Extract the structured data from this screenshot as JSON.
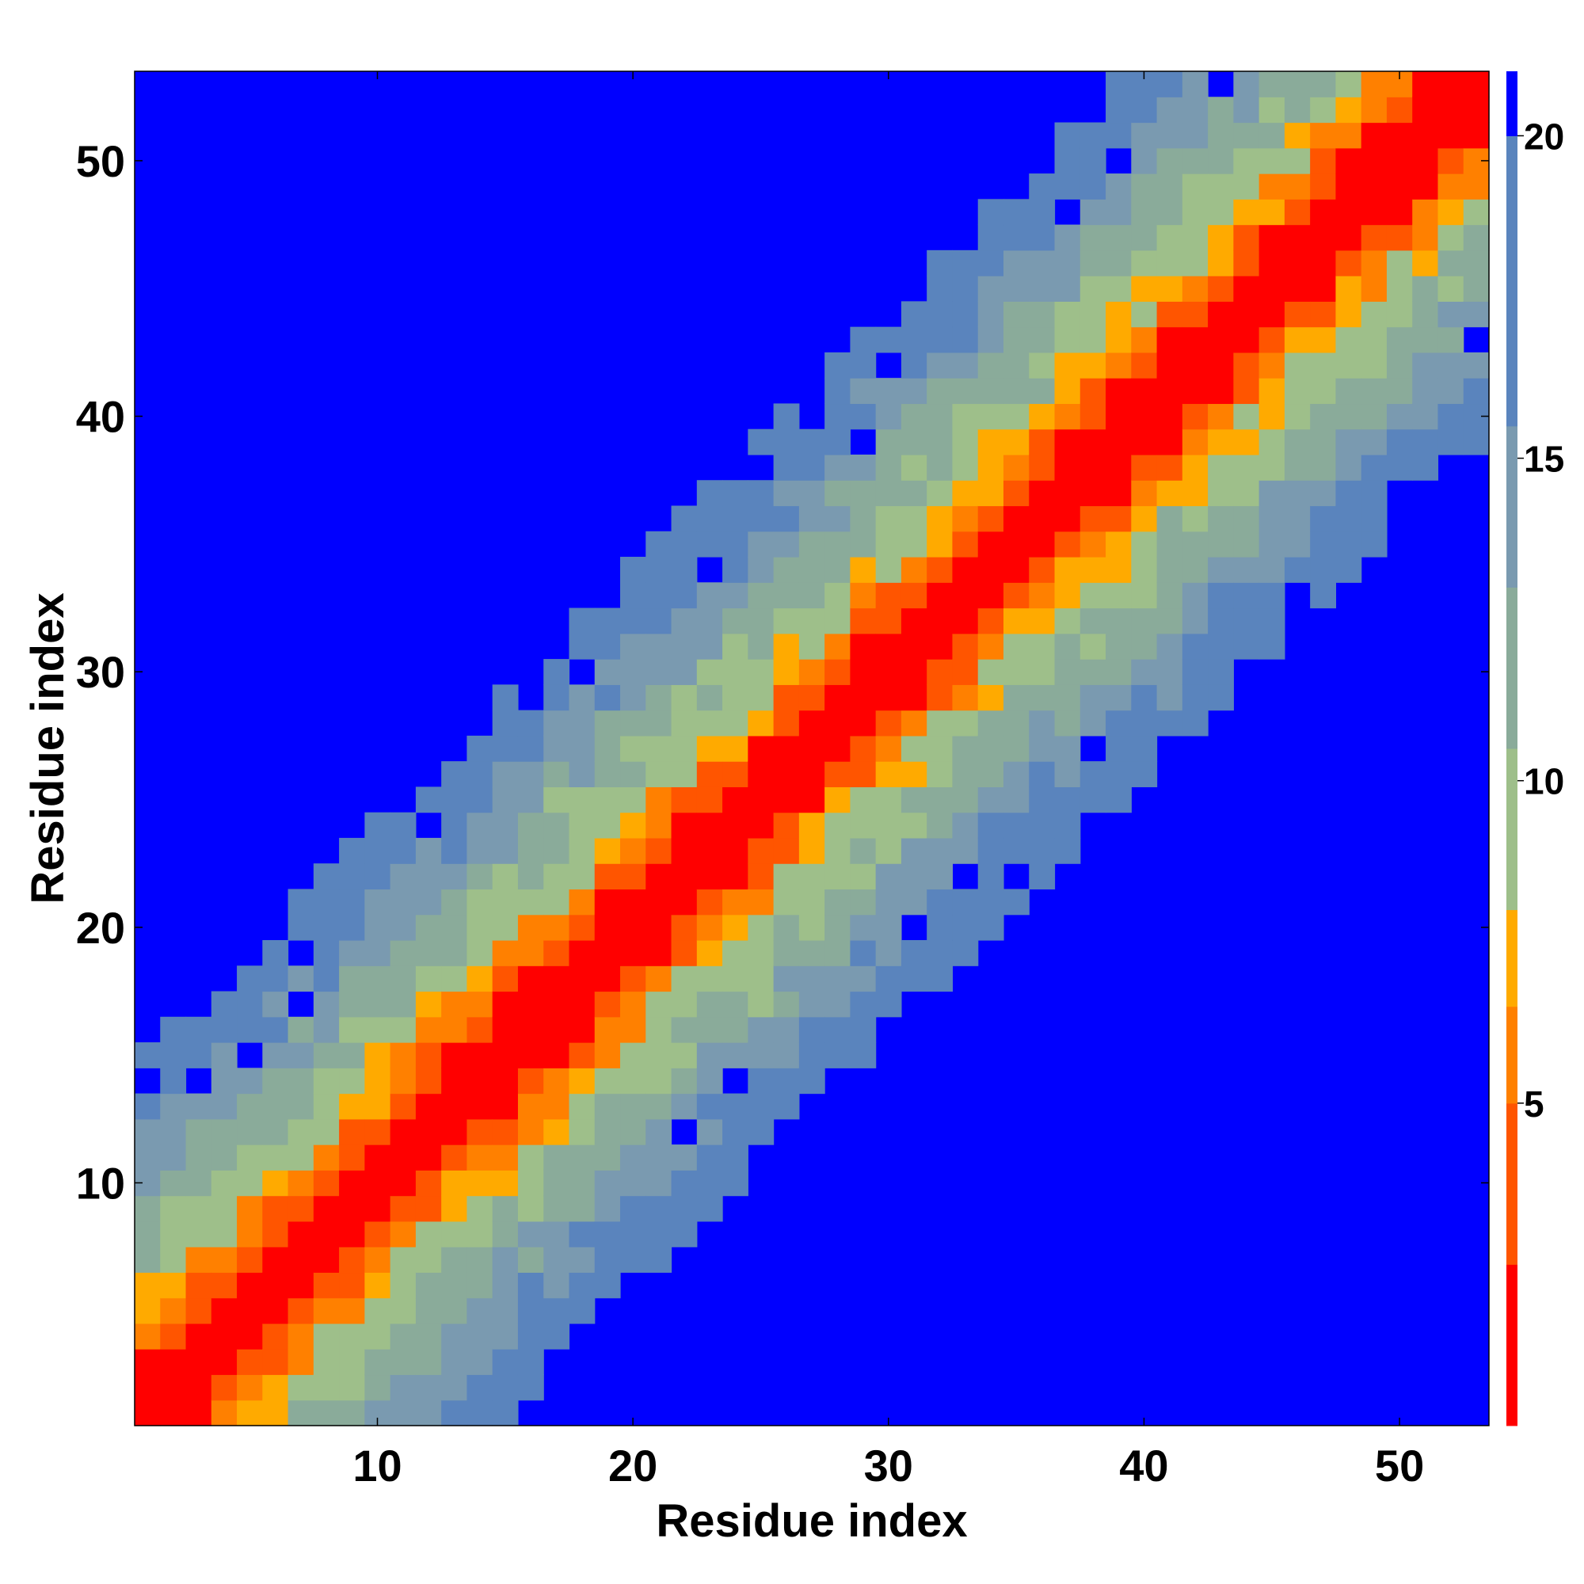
{
  "chart_data": {
    "type": "heatmap",
    "title": "",
    "xlabel": "Residue index",
    "ylabel": "Residue index",
    "x_range": [
      0.5,
      53.5
    ],
    "y_range": [
      0.5,
      53.5
    ],
    "n_residues": 53,
    "x_ticks": [
      10,
      20,
      30,
      40,
      50
    ],
    "y_ticks": [
      10,
      20,
      30,
      40,
      50
    ],
    "x_tick_labels": [
      "10",
      "20",
      "30",
      "40",
      "50"
    ],
    "y_tick_labels": [
      "10",
      "20",
      "30",
      "40",
      "50"
    ],
    "colorbar": {
      "range": [
        0,
        21
      ],
      "ticks": [
        5,
        10,
        15,
        20
      ],
      "tick_labels": [
        "5",
        "10",
        "15",
        "20"
      ],
      "levels": [
        {
          "max": 2.5,
          "color": "#ff0000"
        },
        {
          "max": 5.0,
          "color": "#ff5500"
        },
        {
          "max": 6.5,
          "color": "#ff8000"
        },
        {
          "max": 8.0,
          "color": "#ffaa00"
        },
        {
          "max": 10.5,
          "color": "#9ebf8a"
        },
        {
          "max": 13.0,
          "color": "#8aab9a"
        },
        {
          "max": 15.5,
          "color": "#7a9ab0"
        },
        {
          "max": 20.0,
          "color": "#5a84bd"
        },
        {
          "max": 21.0,
          "color": "#0000ff"
        }
      ]
    },
    "distance_model": {
      "description_values": "approximate distance value per |i-j| band",
      "band_values": [
        0,
        1.5,
        3,
        5.5,
        7,
        9,
        10,
        11,
        12,
        13.5,
        14.5,
        16,
        17,
        18.5,
        19.5
      ],
      "cutoff_value": 21
    },
    "colors": {
      "background": "#ffffff",
      "far": "#0000ff"
    }
  }
}
